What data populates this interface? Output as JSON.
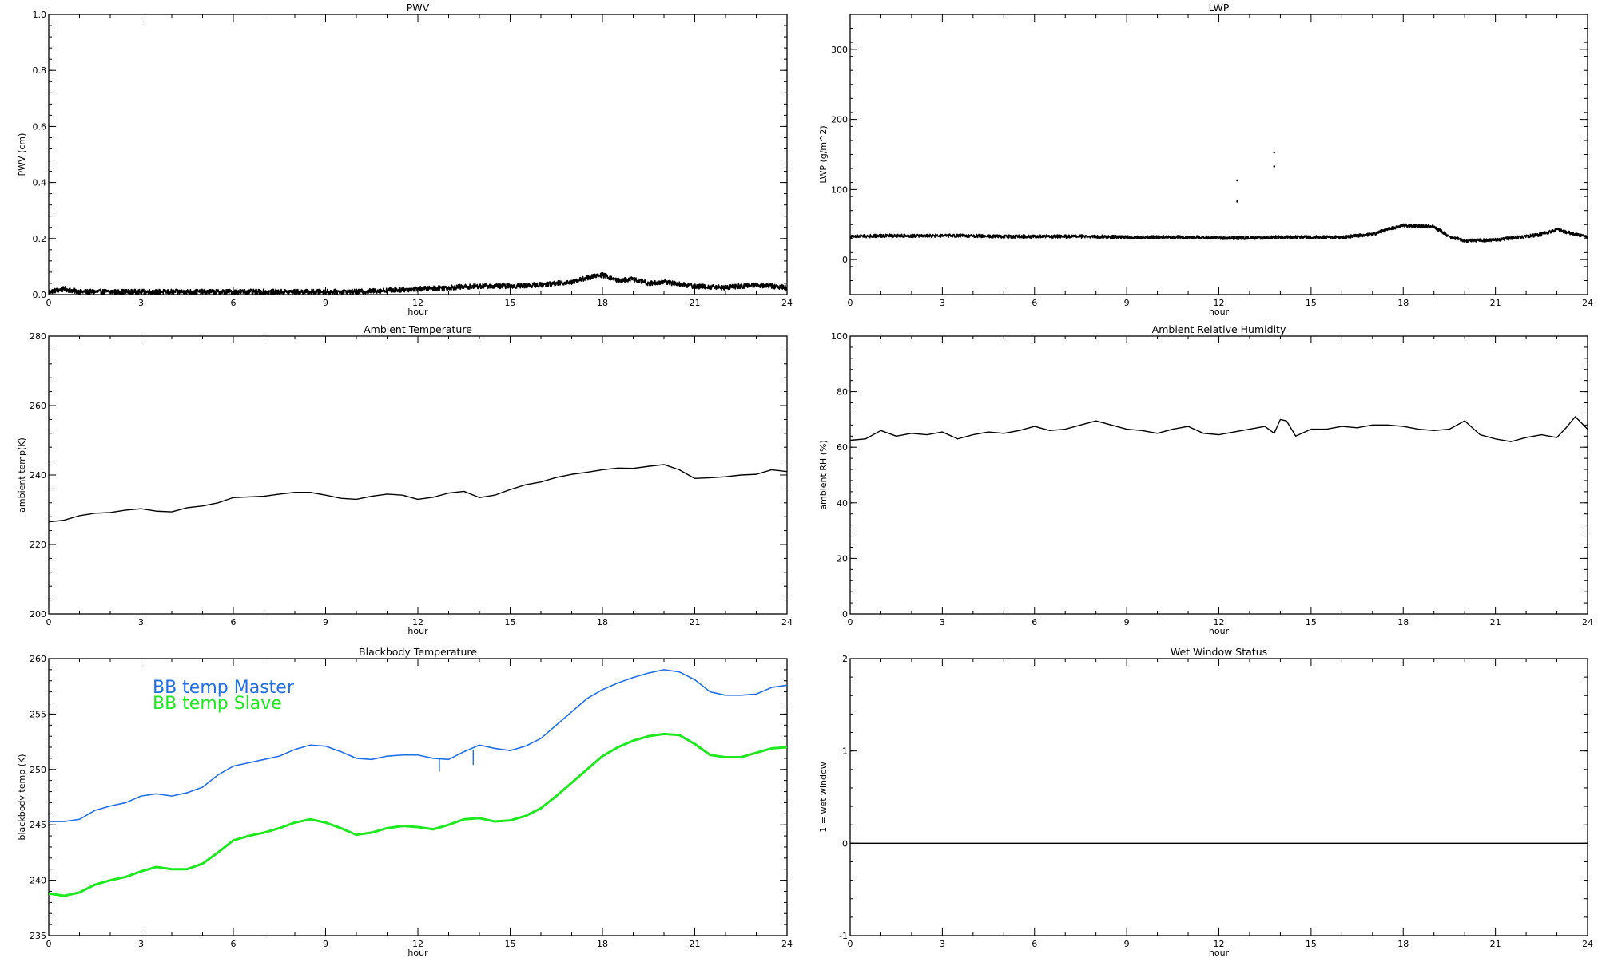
{
  "chart_data": [
    {
      "id": "pwv",
      "type": "line",
      "title": "PWV",
      "xlabel": "hour",
      "ylabel": "PWV (cm)",
      "xlim": [
        0,
        24
      ],
      "ylim": [
        0,
        1
      ],
      "xticks": [
        0,
        3,
        6,
        9,
        12,
        15,
        18,
        21,
        24
      ],
      "yticks": [
        0,
        0.2,
        0.4,
        0.6,
        0.8,
        1.0
      ],
      "ytick_labels": [
        "0.0",
        "0.2",
        "0.4",
        "0.6",
        "0.8",
        "1.0"
      ],
      "noisy": true,
      "series": [
        {
          "color": "#000000",
          "x": [
            0,
            0.5,
            1,
            2,
            3,
            4,
            5,
            6,
            7,
            8,
            9,
            10,
            11,
            12,
            13,
            14,
            15,
            16,
            17,
            17.5,
            18,
            18.5,
            19,
            19.5,
            20,
            21,
            22,
            23,
            23.5,
            24
          ],
          "y": [
            0.01,
            0.02,
            0.01,
            0.01,
            0.01,
            0.01,
            0.01,
            0.01,
            0.01,
            0.01,
            0.01,
            0.01,
            0.015,
            0.02,
            0.025,
            0.03,
            0.03,
            0.035,
            0.045,
            0.06,
            0.07,
            0.05,
            0.055,
            0.04,
            0.045,
            0.03,
            0.025,
            0.035,
            0.03,
            0.025
          ]
        }
      ]
    },
    {
      "id": "lwp",
      "type": "line",
      "title": "LWP",
      "xlabel": "hour",
      "ylabel": "LWP (g/m^2)",
      "xlim": [
        0,
        24
      ],
      "ylim": [
        -50,
        350
      ],
      "xticks": [
        0,
        3,
        6,
        9,
        12,
        15,
        18,
        21,
        24
      ],
      "yticks": [
        0,
        100,
        200,
        300
      ],
      "noisy": true,
      "series": [
        {
          "color": "#000000",
          "x": [
            0,
            1,
            2,
            3,
            4,
            5,
            6,
            7,
            8,
            9,
            10,
            11,
            12,
            13,
            14,
            15,
            16,
            17,
            17.5,
            18,
            18.5,
            19,
            19.5,
            20,
            21,
            22,
            22.5,
            23,
            23.5,
            24
          ],
          "y": [
            33,
            34,
            34,
            34,
            34,
            33,
            33,
            33,
            33,
            32,
            32,
            32,
            31,
            31,
            32,
            32,
            32,
            36,
            43,
            49,
            48,
            47,
            33,
            27,
            28,
            33,
            36,
            43,
            37,
            32
          ]
        }
      ],
      "outliers": {
        "x": [
          12.6,
          12.6,
          13.8,
          13.8
        ],
        "y": [
          113,
          83,
          153,
          133
        ]
      }
    },
    {
      "id": "ambient_temp",
      "type": "line",
      "title": "Ambient Temperature",
      "xlabel": "hour",
      "ylabel": "ambient temp(K)",
      "xlim": [
        0,
        24
      ],
      "ylim": [
        200,
        280
      ],
      "xticks": [
        0,
        3,
        6,
        9,
        12,
        15,
        18,
        21,
        24
      ],
      "yticks": [
        200,
        220,
        240,
        260,
        280
      ],
      "noisy": false,
      "series": [
        {
          "color": "#000000",
          "x": [
            0,
            0.5,
            1,
            1.5,
            2,
            2.5,
            3,
            3.5,
            4,
            4.5,
            5,
            5.5,
            6,
            6.5,
            7,
            7.5,
            8,
            8.5,
            9,
            9.5,
            10,
            10.5,
            11,
            11.5,
            12,
            12.5,
            13,
            13.5,
            14,
            14.5,
            15,
            15.5,
            16,
            16.5,
            17,
            17.5,
            18,
            18.5,
            19,
            19.5,
            20,
            20.5,
            21,
            21.5,
            22,
            22.5,
            23,
            23.5,
            24
          ],
          "y": [
            226.5,
            227.0,
            228.3,
            229.0,
            229.2,
            229.9,
            230.3,
            229.6,
            229.4,
            230.6,
            231.1,
            232.0,
            233.5,
            233.7,
            233.9,
            234.5,
            235.0,
            235.0,
            234.2,
            233.3,
            233.0,
            233.9,
            234.5,
            234.2,
            233.0,
            233.6,
            234.8,
            235.3,
            233.5,
            234.2,
            235.8,
            237.2,
            238.0,
            239.3,
            240.2,
            240.8,
            241.5,
            242.0,
            241.9,
            242.5,
            243.0,
            241.5,
            239.0,
            239.2,
            239.5,
            240.0,
            240.2,
            241.5,
            241.0
          ]
        }
      ]
    },
    {
      "id": "ambient_rh",
      "type": "line",
      "title": "Ambient Relative Humidity",
      "xlabel": "hour",
      "ylabel": "ambient RH (%)",
      "xlim": [
        0,
        24
      ],
      "ylim": [
        0,
        100
      ],
      "xticks": [
        0,
        3,
        6,
        9,
        12,
        15,
        18,
        21,
        24
      ],
      "yticks": [
        0,
        20,
        40,
        60,
        80,
        100
      ],
      "noisy": false,
      "series": [
        {
          "color": "#000000",
          "x": [
            0,
            0.5,
            1,
            1.5,
            2,
            2.5,
            3,
            3.5,
            4,
            4.5,
            5,
            5.5,
            6,
            6.5,
            7,
            7.5,
            8,
            8.5,
            9,
            9.5,
            10,
            10.5,
            11,
            11.5,
            12,
            12.5,
            13,
            13.5,
            13.8,
            14,
            14.2,
            14.5,
            15,
            15.5,
            16,
            16.5,
            17,
            17.5,
            18,
            18.5,
            19,
            19.5,
            20,
            20.5,
            21,
            21.5,
            22,
            22.5,
            23,
            23.3,
            23.6,
            24
          ],
          "y": [
            62.5,
            63.0,
            66.0,
            64.0,
            65.0,
            64.5,
            65.5,
            63.0,
            64.5,
            65.5,
            65.0,
            66.0,
            67.5,
            66.0,
            66.5,
            68.0,
            69.5,
            68.0,
            66.5,
            66.0,
            65.0,
            66.5,
            67.5,
            65.0,
            64.5,
            65.5,
            66.5,
            67.5,
            65.0,
            70.0,
            69.5,
            64.0,
            66.5,
            66.5,
            67.5,
            67.0,
            68.0,
            68.0,
            67.5,
            66.5,
            66.0,
            66.5,
            69.5,
            64.5,
            63.0,
            62.0,
            63.5,
            64.5,
            63.5,
            67.0,
            71.0,
            66.5
          ]
        }
      ]
    },
    {
      "id": "bb_temp",
      "type": "line",
      "title": "Blackbody Temperature",
      "xlabel": "hour",
      "ylabel": "blackbody temp (K)",
      "xlim": [
        0,
        24
      ],
      "ylim": [
        235,
        260
      ],
      "xticks": [
        0,
        3,
        6,
        9,
        12,
        15,
        18,
        21,
        24
      ],
      "yticks": [
        235,
        240,
        245,
        250,
        255,
        260
      ],
      "noisy": false,
      "legend": "top-left",
      "series": [
        {
          "name": "BB temp Master",
          "color": "#1f6fe5",
          "x": [
            0,
            0.5,
            1,
            1.5,
            2,
            2.5,
            3,
            3.5,
            4,
            4.5,
            5,
            5.5,
            6,
            6.5,
            7,
            7.5,
            8,
            8.5,
            9,
            9.5,
            10,
            10.5,
            11,
            11.5,
            12,
            12.5,
            13,
            13.5,
            14,
            14.5,
            15,
            15.5,
            16,
            16.5,
            17,
            17.5,
            18,
            18.5,
            19,
            19.5,
            20,
            20.5,
            21,
            21.5,
            22,
            22.5,
            23,
            23.5,
            24
          ],
          "y": [
            245.3,
            245.3,
            245.5,
            246.3,
            246.7,
            247.0,
            247.6,
            247.8,
            247.6,
            247.9,
            248.4,
            249.5,
            250.3,
            250.6,
            250.9,
            251.2,
            251.8,
            252.2,
            252.1,
            251.6,
            251.0,
            250.9,
            251.2,
            251.3,
            251.3,
            251.0,
            250.9,
            251.6,
            252.2,
            251.9,
            251.7,
            252.1,
            252.8,
            254.0,
            255.2,
            256.4,
            257.2,
            257.8,
            258.3,
            258.7,
            259.0,
            258.8,
            258.1,
            257.0,
            256.7,
            256.7,
            256.8,
            257.4,
            257.6
          ]
        },
        {
          "name": "BB temp Slave",
          "color": "#1ee81e",
          "x": [
            0,
            0.5,
            1,
            1.5,
            2,
            2.5,
            3,
            3.5,
            4,
            4.5,
            5,
            5.5,
            6,
            6.5,
            7,
            7.5,
            8,
            8.5,
            9,
            9.5,
            10,
            10.5,
            11,
            11.5,
            12,
            12.5,
            13,
            13.5,
            14,
            14.5,
            15,
            15.5,
            16,
            16.5,
            17,
            17.5,
            18,
            18.5,
            19,
            19.5,
            20,
            20.5,
            21,
            21.5,
            22,
            22.5,
            23,
            23.5,
            24
          ],
          "y": [
            238.8,
            238.6,
            238.9,
            239.6,
            240.0,
            240.3,
            240.8,
            241.2,
            241.0,
            241.0,
            241.5,
            242.5,
            243.6,
            244.0,
            244.3,
            244.7,
            245.2,
            245.5,
            245.2,
            244.7,
            244.1,
            244.3,
            244.7,
            244.9,
            244.8,
            244.6,
            245.0,
            245.5,
            245.6,
            245.3,
            245.4,
            245.8,
            246.5,
            247.6,
            248.8,
            250.0,
            251.2,
            252.0,
            252.6,
            253.0,
            253.2,
            253.1,
            252.3,
            251.3,
            251.1,
            251.1,
            251.5,
            251.9,
            252.0
          ]
        }
      ],
      "spikes": {
        "x": [
          12.7,
          13.8
        ],
        "from": [
          251.0,
          251.8
        ],
        "to": [
          249.8,
          250.4
        ]
      }
    },
    {
      "id": "wet_window",
      "type": "line",
      "title": "Wet Window Status",
      "xlabel": "hour",
      "ylabel": "1 = wet window",
      "xlim": [
        0,
        24
      ],
      "ylim": [
        -1,
        2
      ],
      "xticks": [
        0,
        3,
        6,
        9,
        12,
        15,
        18,
        21,
        24
      ],
      "yticks": [
        -1,
        0,
        1,
        2
      ],
      "noisy": false,
      "series": [
        {
          "color": "#000000",
          "x": [
            0,
            24
          ],
          "y": [
            0,
            0
          ]
        }
      ]
    }
  ]
}
